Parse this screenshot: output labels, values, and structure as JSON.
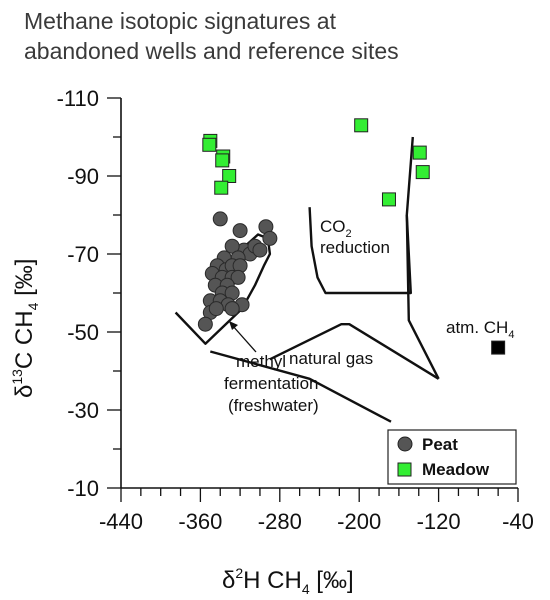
{
  "title_lines": [
    "Methane isotopic signatures at",
    "abandoned wells and reference sites"
  ],
  "chart_data": {
    "type": "scatter",
    "title": "Methane isotopic signatures at abandoned wells and reference sites",
    "xlabel": {
      "delta": "δ",
      "iso": "2",
      "rest": "H CH",
      "sub": "4",
      "unit": " [‰]"
    },
    "ylabel": {
      "delta": "δ",
      "iso": "13",
      "rest": "C CH",
      "sub": "4",
      "unit": " [‰]"
    },
    "xlim": [
      -440,
      -40
    ],
    "ylim": [
      -10,
      -110
    ],
    "x_ticks": [
      -440,
      -360,
      -280,
      -200,
      -120,
      -40
    ],
    "x_tick_labels": [
      "-440",
      "-360",
      "-280",
      "-200",
      "-120",
      "-40"
    ],
    "x_minor_step": 20,
    "y_ticks": [
      -110,
      -90,
      -70,
      -50,
      -30,
      -10
    ],
    "y_tick_labels": [
      "-110",
      "-90",
      "-70",
      "-50",
      "-30",
      "-10"
    ],
    "y_minor_step": 10,
    "grid": false,
    "legend_position": "bottom-right",
    "series": [
      {
        "name": "Peat",
        "marker": "circle",
        "color": "#555555",
        "points": [
          [
            -340,
            -79
          ],
          [
            -320,
            -76
          ],
          [
            -294,
            -77
          ],
          [
            -290,
            -74
          ],
          [
            -316,
            -71
          ],
          [
            -328,
            -72
          ],
          [
            -310,
            -70
          ],
          [
            -305,
            -72
          ],
          [
            -300,
            -71
          ],
          [
            -322,
            -69
          ],
          [
            -336,
            -69
          ],
          [
            -343,
            -67
          ],
          [
            -334,
            -66
          ],
          [
            -328,
            -67
          ],
          [
            -320,
            -67
          ],
          [
            -348,
            -65
          ],
          [
            -338,
            -64
          ],
          [
            -328,
            -64
          ],
          [
            -322,
            -64
          ],
          [
            -345,
            -62
          ],
          [
            -333,
            -62
          ],
          [
            -338,
            -60
          ],
          [
            -328,
            -60
          ],
          [
            -350,
            -58
          ],
          [
            -340,
            -58
          ],
          [
            -332,
            -57
          ],
          [
            -318,
            -57
          ],
          [
            -350,
            -55
          ],
          [
            -344,
            -56
          ],
          [
            -328,
            -56
          ],
          [
            -355,
            -52
          ]
        ]
      },
      {
        "name": "Meadow",
        "marker": "square",
        "color": "#33ee33",
        "points": [
          [
            -350,
            -99
          ],
          [
            -351,
            -98
          ],
          [
            -337,
            -95
          ],
          [
            -338,
            -94
          ],
          [
            -331,
            -90
          ],
          [
            -339,
            -87
          ],
          [
            -198,
            -103
          ],
          [
            -139,
            -96
          ],
          [
            -136,
            -91
          ],
          [
            -170,
            -84
          ]
        ]
      },
      {
        "name": "atm. CH",
        "name_sub": "4",
        "marker": "square",
        "color": "#000000",
        "points": [
          [
            -60,
            -46
          ]
        ]
      }
    ],
    "region_lines": [
      {
        "name": "methyl-fermentation",
        "points": [
          [
            -385,
            -55
          ],
          [
            -355,
            -47
          ],
          [
            -318,
            -56
          ],
          [
            -305,
            -62
          ],
          [
            -296,
            -67
          ],
          [
            -290,
            -70
          ],
          [
            -292,
            -74
          ],
          [
            -302,
            -75
          ],
          [
            -315,
            -72
          ]
        ]
      },
      {
        "name": "co2-reduction",
        "points": [
          [
            -250,
            -82
          ],
          [
            -248,
            -72
          ],
          [
            -242,
            -64
          ],
          [
            -234,
            -60
          ],
          [
            -148,
            -60
          ],
          [
            -152,
            -80
          ],
          [
            -146,
            -100
          ]
        ]
      },
      {
        "name": "natural-gas",
        "points": [
          [
            -290,
            -43
          ],
          [
            -218,
            -52
          ],
          [
            -210,
            -52
          ],
          [
            -120,
            -38
          ]
        ]
      },
      {
        "name": "lower-boundary",
        "points": [
          [
            -350,
            -45
          ],
          [
            -250,
            -38
          ],
          [
            -168,
            -27
          ]
        ]
      },
      {
        "name": "upper-right-boundary",
        "points": [
          [
            -152,
            -80
          ],
          [
            -150,
            -53
          ],
          [
            -120,
            -38
          ]
        ]
      }
    ],
    "annotations": {
      "co2_reduction": {
        "line1": "CO",
        "line1_sub": "2",
        "line2": "reduction"
      },
      "methyl_fermentation": [
        "methyl",
        "fermentation",
        "(freshwater)"
      ],
      "natural_gas": "natural gas",
      "atm_ch4": {
        "text": "atm. CH",
        "sub": "4"
      }
    },
    "legend": [
      {
        "label": "Peat",
        "marker": "circle",
        "color": "#555555"
      },
      {
        "label": "Meadow",
        "marker": "square",
        "color": "#33ee33"
      }
    ]
  }
}
